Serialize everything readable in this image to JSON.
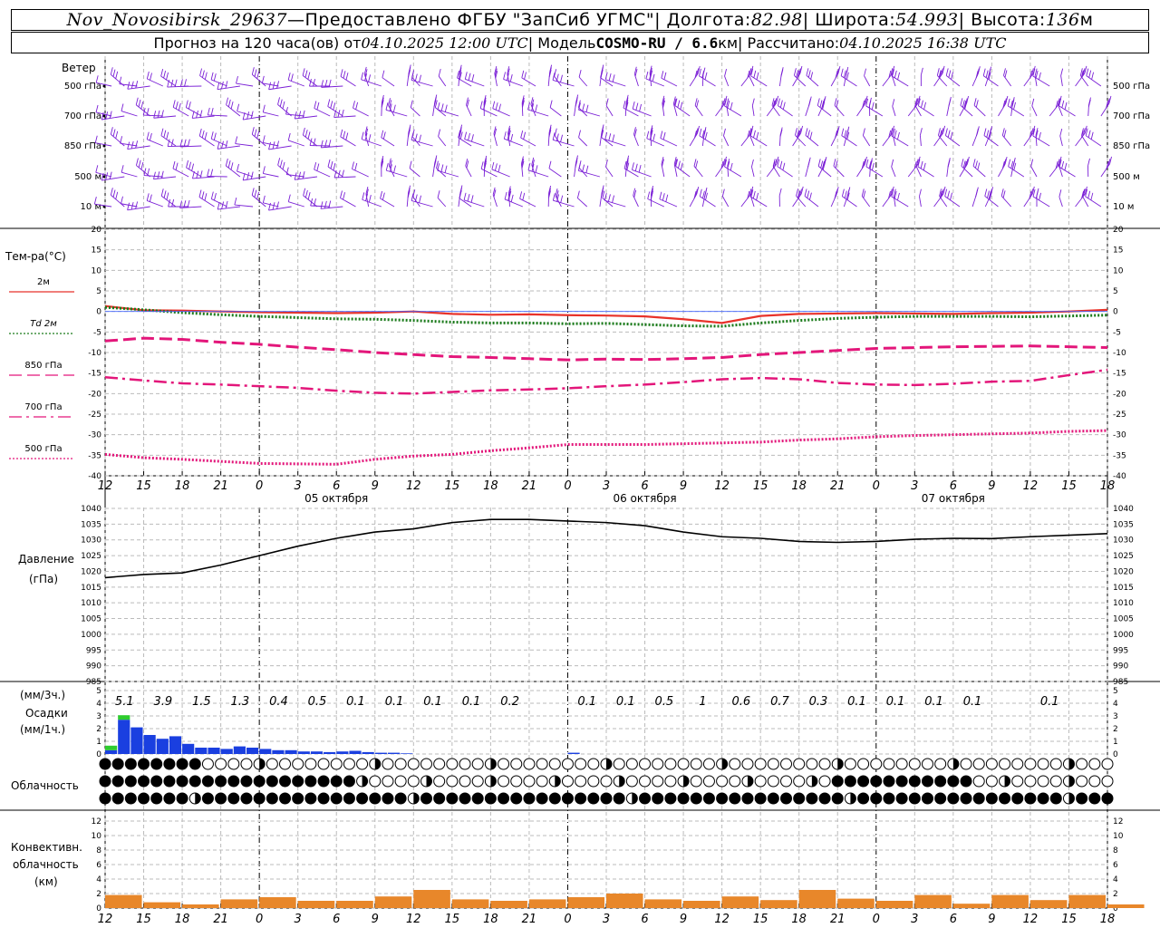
{
  "header": {
    "station": "Nov_Novosibirsk_29637",
    "sep1": " — ",
    "provider": "Предоставлено ФГБУ \"ЗапСиб УГМС\"",
    "lon_label": " | Долгота: ",
    "lon": "82.98",
    "lat_label": " | Широта: ",
    "lat": "54.993",
    "alt_label": " | Высота: ",
    "alt": "136",
    "alt_unit": "м",
    "forecast_label": "Прогноз на 120 часа(ов) от ",
    "forecast_from": "04.10.2025 12:00 UTC",
    "model_label": "  | Модель ",
    "model": "COSMO-RU / 6.6",
    "model_unit": "км",
    "calc_label": " | Рассчитано: ",
    "calc_time": "04.10.2025 16:38 UTC"
  },
  "wind_panel": {
    "title": "Ветер",
    "levels": [
      "500 гПа",
      "700 гПа",
      "850 гПа",
      "500 м",
      "10 м"
    ],
    "color": "#7a1fd6"
  },
  "temp_panel": {
    "title": "Тем-ра(°С)",
    "legend": [
      {
        "label": "2м",
        "color": "#e8322a",
        "style": "solid"
      },
      {
        "label": "Td 2м",
        "color": "#1a7a1a",
        "style": "dotted"
      },
      {
        "label": "850 гПа",
        "color": "#e3167a",
        "style": "dashed"
      },
      {
        "label": "700 гПа",
        "color": "#e3167a",
        "style": "dashdot"
      },
      {
        "label": "500 гПа",
        "color": "#e3167a",
        "style": "dotted"
      }
    ],
    "yticks": [
      "20",
      "15",
      "10",
      "5",
      "0",
      "-5",
      "-10",
      "-15",
      "-20",
      "-25",
      "-30",
      "-35",
      "-40"
    ]
  },
  "xaxis": {
    "hour_labels": [
      "12",
      "15",
      "18",
      "21",
      "0",
      "3",
      "6",
      "9",
      "12",
      "15",
      "18",
      "21",
      "0",
      "3",
      "6",
      "9",
      "12",
      "15",
      "18",
      "21",
      "0",
      "3",
      "6",
      "9",
      "12",
      "15",
      "18"
    ],
    "dates": [
      "05 октября",
      "06 октября",
      "07 октября"
    ]
  },
  "pressure_panel": {
    "title": "Давление",
    "unit": "(гПа)",
    "yticks": [
      "1040",
      "1035",
      "1030",
      "1025",
      "1020",
      "1015",
      "1010",
      "1005",
      "1000",
      "995",
      "990",
      "985"
    ]
  },
  "precip_panel": {
    "unit_top": "(мм/3ч.)",
    "title": "Осадки",
    "unit_bottom": "(мм/1ч.)",
    "yticks": [
      "5",
      "4",
      "3",
      "2",
      "1",
      "0"
    ],
    "three_hour_totals": [
      "5.1",
      "3.9",
      "1.5",
      "1.3",
      "0.4",
      "0.5",
      "0.1",
      "0.1",
      "0.1",
      "0.1",
      "0.2",
      "",
      "0.1",
      "0.1",
      "0.5",
      "1",
      "0.6",
      "0.7",
      "0.3",
      "0.1",
      "0.1",
      "0.1",
      "0.1",
      "",
      "0.1",
      "",
      ""
    ]
  },
  "cloud_panel": {
    "title": "Облачность"
  },
  "conv_panel": {
    "title_line1": "Конвективн.",
    "title_line2": "облачность",
    "unit": "(км)",
    "yticks": [
      "12",
      "10",
      "8",
      "6",
      "4",
      "2",
      "0"
    ]
  },
  "chart_data": [
    {
      "type": "line",
      "title": "Тем-ра(°С)",
      "x_hours": [
        0,
        3,
        6,
        9,
        12,
        15,
        18,
        21,
        24,
        27,
        30,
        33,
        36,
        39,
        42,
        45,
        48,
        51,
        54,
        57,
        60,
        63,
        66,
        69,
        72,
        75,
        78
      ],
      "ylim": [
        -40,
        20
      ],
      "series": [
        {
          "name": "2м",
          "values": [
            1.3,
            0.3,
            0.2,
            0,
            -0.2,
            -0.3,
            -0.4,
            -0.3,
            0,
            -0.6,
            -0.8,
            -0.7,
            -0.9,
            -1,
            -1.2,
            -1.9,
            -2.8,
            -1.1,
            -0.6,
            -0.5,
            -0.4,
            -0.5,
            -0.6,
            -0.4,
            -0.3,
            0,
            0.4
          ]
        },
        {
          "name": "Td 2м",
          "values": [
            1,
            0.4,
            -0.3,
            -0.8,
            -1.2,
            -1.5,
            -1.8,
            -1.9,
            -2.2,
            -2.6,
            -2.8,
            -2.8,
            -3.0,
            -2.9,
            -3.2,
            -3.5,
            -3.6,
            -2.8,
            -2.2,
            -1.7,
            -1.4,
            -1.2,
            -1.2,
            -1.2,
            -1.3,
            -1.1,
            -0.9
          ]
        },
        {
          "name": "850 гПа",
          "values": [
            -7.2,
            -6.5,
            -6.8,
            -7.5,
            -8.0,
            -8.7,
            -9.3,
            -10.0,
            -10.5,
            -11.0,
            -11.2,
            -11.5,
            -11.8,
            -11.6,
            -11.7,
            -11.5,
            -11.2,
            -10.5,
            -10.0,
            -9.5,
            -9.0,
            -8.8,
            -8.6,
            -8.5,
            -8.4,
            -8.6,
            -8.8
          ]
        },
        {
          "name": "700 гПа",
          "values": [
            -16,
            -16.8,
            -17.5,
            -17.8,
            -18.2,
            -18.6,
            -19.3,
            -19.8,
            -20,
            -19.6,
            -19.2,
            -19,
            -18.7,
            -18.2,
            -17.8,
            -17.2,
            -16.5,
            -16.2,
            -16.5,
            -17.4,
            -17.8,
            -17.9,
            -17.6,
            -17.1,
            -16.9,
            -15.5,
            -14.2
          ]
        },
        {
          "name": "500 гПа",
          "values": [
            -34.8,
            -35.6,
            -36,
            -36.5,
            -37,
            -37.1,
            -37.2,
            -36,
            -35.2,
            -34.8,
            -33.9,
            -33.2,
            -32.4,
            -32.4,
            -32.4,
            -32.2,
            -32.0,
            -31.8,
            -31.3,
            -31.0,
            -30.5,
            -30.2,
            -30.0,
            -29.8,
            -29.6,
            -29.2,
            -29.0
          ]
        }
      ]
    },
    {
      "type": "line",
      "title": "Давление",
      "x_hours": [
        0,
        3,
        6,
        9,
        12,
        15,
        18,
        21,
        24,
        27,
        30,
        33,
        36,
        39,
        42,
        45,
        48,
        51,
        54,
        57,
        60,
        63,
        66,
        69,
        72,
        75,
        78
      ],
      "ylim": [
        985,
        1040
      ],
      "series": [
        {
          "name": "",
          "values": [
            1018,
            1019,
            1019.5,
            1022,
            1025,
            1028,
            1030.5,
            1032.5,
            1033.5,
            1035.5,
            1036.5,
            1036.5,
            1036,
            1035.5,
            1034.5,
            1032.5,
            1031,
            1030.5,
            1029.5,
            1029.2,
            1029.5,
            1030.2,
            1030.5,
            1030.4,
            1031,
            1031.5,
            1032
          ]
        }
      ]
    },
    {
      "type": "bar",
      "title": "Осадки",
      "x_hours": [
        0,
        1,
        2,
        3,
        4,
        5,
        6,
        7,
        8,
        9,
        10,
        11,
        12,
        13,
        14,
        15,
        16,
        17,
        18,
        19,
        20,
        21,
        22,
        23,
        24,
        25,
        26,
        27,
        28,
        29,
        30,
        31,
        32,
        33,
        34,
        35,
        36
      ],
      "ylim": [
        0,
        5
      ],
      "series": [
        {
          "name": "",
          "values": [
            0.3,
            2.7,
            2.1,
            1.5,
            1.2,
            1.4,
            0.8,
            0.5,
            0.5,
            0.4,
            0.6,
            0.5,
            0.4,
            0.3,
            0.3,
            0.2,
            0.2,
            0.15,
            0.2,
            0.25,
            0.15,
            0.1,
            0.1,
            0.05,
            0,
            0,
            0,
            0,
            0,
            0,
            0,
            0,
            0,
            0,
            0,
            0,
            0.1
          ]
        }
      ]
    },
    {
      "type": "bar",
      "title": "Конвективн. облачность",
      "x_hours": [
        0,
        3,
        6,
        9,
        12,
        15,
        18,
        21,
        24,
        27,
        30,
        33,
        36,
        39,
        42,
        45,
        48,
        51,
        54,
        57,
        60,
        63,
        66,
        69,
        72,
        75,
        78
      ],
      "ylim": [
        0,
        12
      ],
      "series": [
        {
          "name": "",
          "values": [
            1.8,
            0.8,
            0.5,
            1.2,
            1.5,
            1.0,
            1.0,
            1.6,
            2.5,
            1.2,
            1.0,
            1.2,
            1.5,
            2.0,
            1.2,
            1.0,
            1.6,
            1.1,
            2.5,
            1.3,
            1.0,
            1.8,
            0.6,
            1.8,
            1.1,
            1.8,
            0.5
          ]
        }
      ]
    }
  ]
}
